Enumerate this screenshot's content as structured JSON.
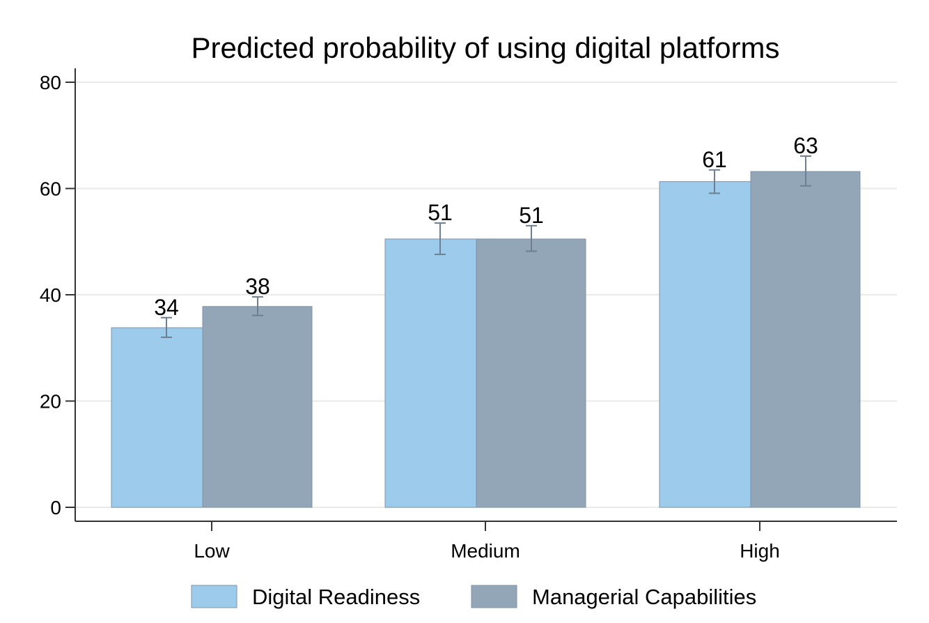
{
  "chart_data": {
    "type": "bar",
    "title": "Predicted probability of using digital platforms",
    "xlabel": "",
    "ylabel": "",
    "categories": [
      "Low",
      "Medium",
      "High"
    ],
    "series": [
      {
        "name": "Digital Readiness",
        "color": "#9ccbeb",
        "values": [
          33.8,
          50.5,
          61.3
        ],
        "labels": [
          "34",
          "51",
          "61"
        ],
        "ci_low": [
          32.0,
          47.6,
          59.1
        ],
        "ci_high": [
          35.7,
          53.5,
          63.5
        ]
      },
      {
        "name": "Managerial Capabilities",
        "color": "#93a6b8",
        "values": [
          37.8,
          50.5,
          63.2
        ],
        "labels": [
          "38",
          "51",
          "63"
        ],
        "ci_low": [
          36.1,
          48.2,
          60.5
        ],
        "ci_high": [
          39.6,
          53.0,
          66.1
        ]
      }
    ],
    "ylim": [
      0,
      80
    ],
    "yticks": [
      0,
      20,
      40,
      60,
      80
    ],
    "grid": true,
    "legend_position": "bottom"
  }
}
